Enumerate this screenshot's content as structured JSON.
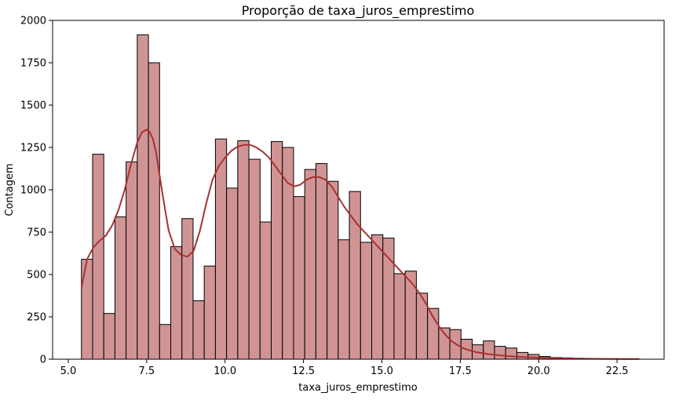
{
  "chart_data": {
    "type": "bar",
    "subtype": "histogram-with-kde",
    "title": "Proporção de taxa_juros_emprestimo",
    "xlabel": "taxa_juros_emprestimo",
    "ylabel": "Contagem",
    "xlim": [
      4.5,
      24.0
    ],
    "ylim": [
      0,
      2000
    ],
    "xticks": [
      5.0,
      7.5,
      10.0,
      12.5,
      15.0,
      17.5,
      20.0,
      22.5
    ],
    "xtick_labels": [
      "5.0",
      "7.5",
      "10.0",
      "12.5",
      "15.0",
      "17.5",
      "20.0",
      "22.5"
    ],
    "yticks": [
      0,
      250,
      500,
      750,
      1000,
      1250,
      1500,
      1750,
      2000
    ],
    "ytick_labels": [
      "0",
      "250",
      "500",
      "750",
      "1000",
      "1250",
      "1500",
      "1750",
      "2000"
    ],
    "grid": false,
    "legend": "none",
    "bins": {
      "start": 5.42,
      "width": 0.356,
      "counts": [
        590,
        1210,
        270,
        840,
        1165,
        1915,
        1750,
        205,
        665,
        830,
        345,
        550,
        1300,
        1010,
        1290,
        1180,
        810,
        1285,
        1250,
        960,
        1120,
        1155,
        1050,
        705,
        990,
        690,
        735,
        715,
        505,
        520,
        390,
        300,
        185,
        175,
        118,
        85,
        108,
        76,
        66,
        40,
        28,
        16,
        10,
        8,
        5,
        4,
        3,
        2,
        2,
        1
      ]
    },
    "kde": {
      "x": [
        5.42,
        5.6,
        5.8,
        6.0,
        6.2,
        6.4,
        6.6,
        6.8,
        7.0,
        7.2,
        7.35,
        7.5,
        7.6,
        7.7,
        7.8,
        8.0,
        8.2,
        8.4,
        8.6,
        8.8,
        9.0,
        9.2,
        9.4,
        9.6,
        9.8,
        10.0,
        10.2,
        10.4,
        10.6,
        10.8,
        11.0,
        11.2,
        11.4,
        11.6,
        11.8,
        12.0,
        12.2,
        12.4,
        12.6,
        12.8,
        13.0,
        13.2,
        13.4,
        13.6,
        13.8,
        14.0,
        14.2,
        14.4,
        14.6,
        14.8,
        15.0,
        15.2,
        15.4,
        15.6,
        15.8,
        16.0,
        16.2,
        16.4,
        16.6,
        16.8,
        17.0,
        17.2,
        17.4,
        17.6,
        17.8,
        18.0,
        18.4,
        18.8,
        19.2,
        19.6,
        20.0,
        20.4,
        20.8,
        21.2,
        21.6,
        22.0,
        22.4,
        22.8,
        23.2
      ],
      "y": [
        420,
        590,
        660,
        700,
        730,
        790,
        880,
        1000,
        1150,
        1280,
        1340,
        1355,
        1340,
        1300,
        1220,
        980,
        760,
        650,
        615,
        605,
        640,
        760,
        920,
        1060,
        1140,
        1190,
        1230,
        1255,
        1265,
        1265,
        1250,
        1225,
        1190,
        1140,
        1090,
        1040,
        1020,
        1030,
        1060,
        1075,
        1075,
        1060,
        1020,
        960,
        900,
        850,
        800,
        760,
        720,
        680,
        640,
        600,
        560,
        520,
        480,
        440,
        390,
        330,
        260,
        200,
        150,
        110,
        85,
        65,
        52,
        42,
        30,
        22,
        16,
        12,
        9,
        7,
        5,
        4,
        3,
        2,
        2,
        1,
        1
      ]
    },
    "colors": {
      "bar_fill": "#d19495",
      "bar_edge": "#000000",
      "kde_line": "#a83232"
    }
  }
}
